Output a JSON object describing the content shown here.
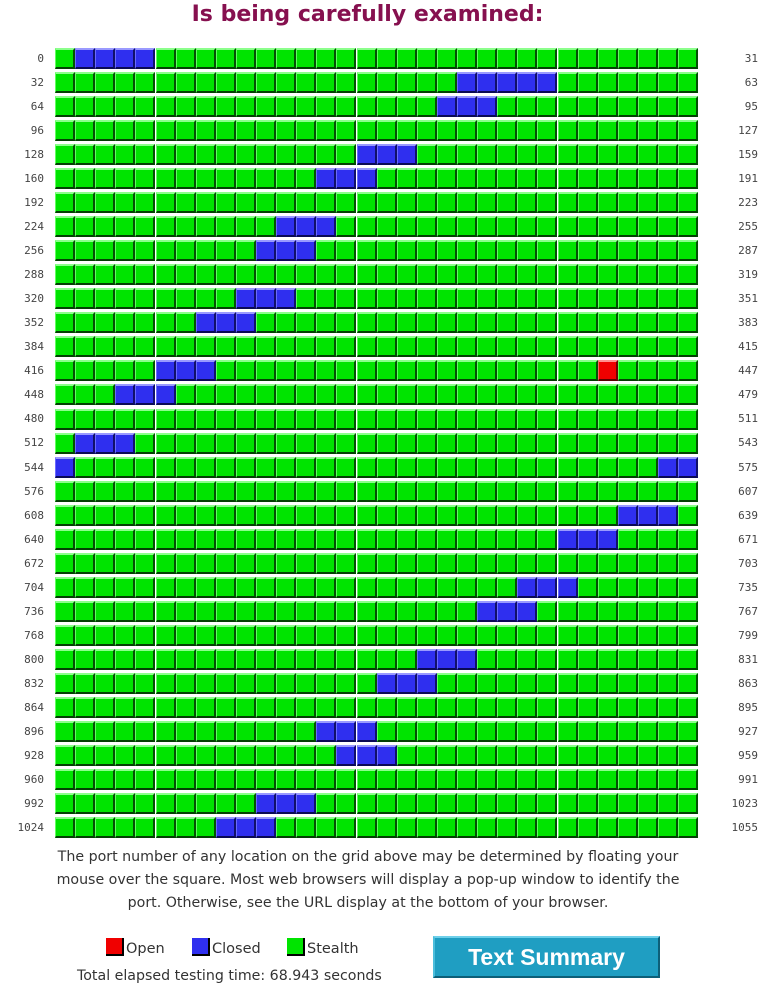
{
  "title": "Is being carefully examined:",
  "grid": {
    "start_port": 0,
    "columns": 32,
    "rows": 33,
    "closed_ports": [
      1,
      2,
      3,
      4,
      52,
      53,
      54,
      55,
      56,
      83,
      84,
      85,
      143,
      144,
      145,
      173,
      174,
      175,
      235,
      236,
      237,
      266,
      267,
      268,
      329,
      330,
      331,
      359,
      360,
      361,
      421,
      422,
      423,
      451,
      452,
      453,
      513,
      514,
      515,
      544,
      574,
      575,
      636,
      637,
      638,
      665,
      666,
      667,
      727,
      728,
      729,
      757,
      758,
      759,
      818,
      819,
      820,
      848,
      849,
      850,
      909,
      910,
      911,
      942,
      943,
      944,
      1002,
      1003,
      1004,
      1032,
      1033,
      1034
    ],
    "open_ports": [
      443
    ],
    "colors": {
      "open": "#f00000",
      "closed": "#2f2fef",
      "stealth": "#00e400"
    }
  },
  "note": "The port number of any location on the grid above may be determined by floating your mouse over the square. Most web browsers will display a pop-up window to identify the port. Otherwise, see the URL display at the bottom of your browser.",
  "legend": {
    "open": "Open",
    "closed": "Closed",
    "stealth": "Stealth"
  },
  "elapsed": "Total elapsed testing time: 68.943 seconds",
  "summary_button": "Text Summary"
}
